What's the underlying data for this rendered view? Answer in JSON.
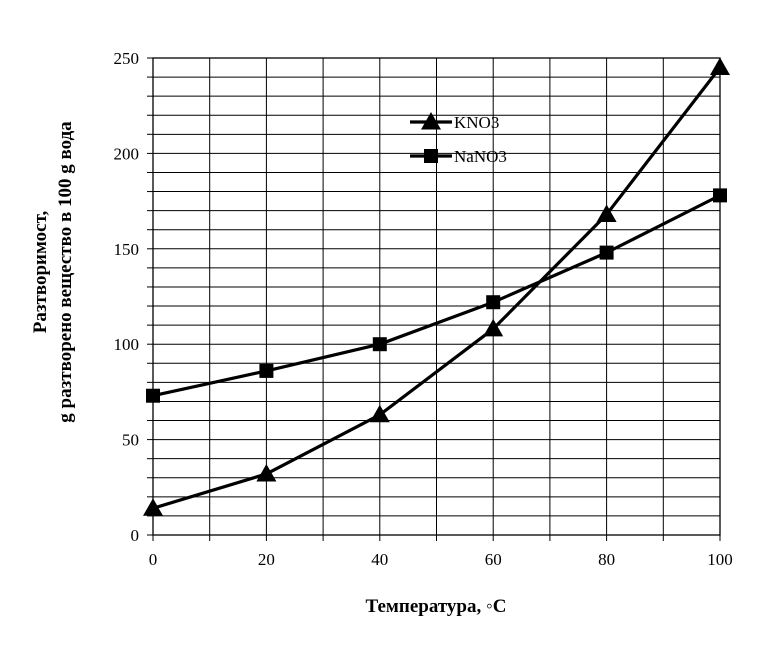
{
  "chart_data": {
    "type": "line",
    "title": "",
    "xlabel": "Температура, ◦C",
    "ylabel_line1": "Разтворимост,",
    "ylabel_line2": "g  разтворено вещество в 100 g вода",
    "x": [
      0,
      20,
      40,
      60,
      80,
      100
    ],
    "xlim": [
      0,
      100
    ],
    "ylim": [
      0,
      250
    ],
    "x_ticks": [
      "0",
      "20",
      "40",
      "60",
      "80",
      "100"
    ],
    "y_ticks": [
      "0",
      "50",
      "100",
      "150",
      "200",
      "250"
    ],
    "grid": true,
    "legend_position": "upper-center",
    "series": [
      {
        "name": "KNO3",
        "marker": "triangle",
        "color": "#000000",
        "values": [
          14,
          32,
          63,
          108,
          168,
          245
        ]
      },
      {
        "name": "NaNO3",
        "marker": "square",
        "color": "#000000",
        "values": [
          73,
          86,
          100,
          122,
          148,
          178
        ]
      }
    ]
  }
}
